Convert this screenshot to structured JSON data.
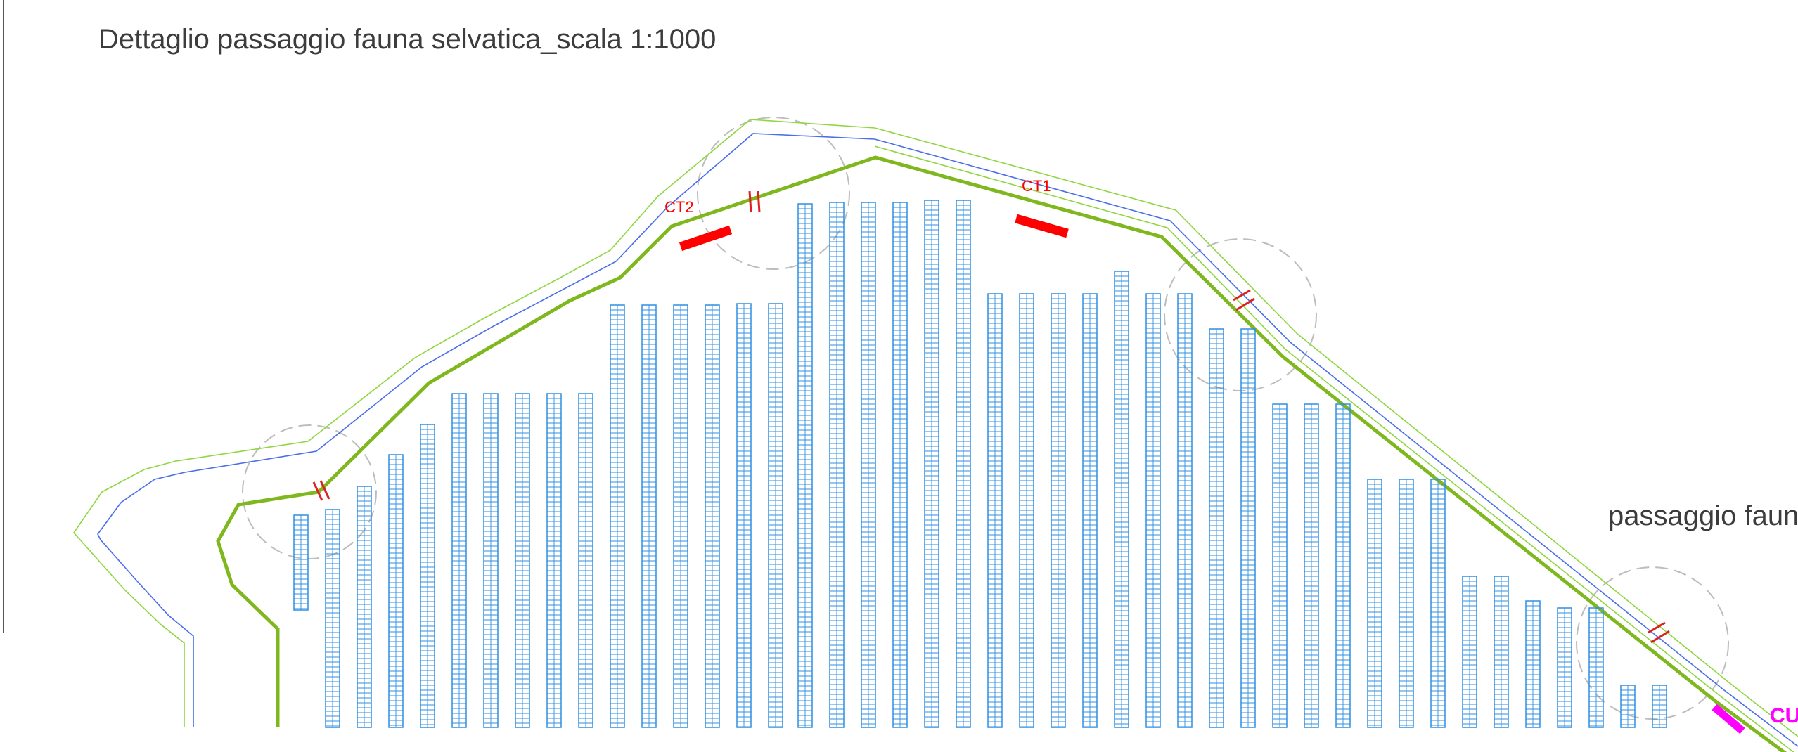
{
  "title": "Dettaglio passaggio fauna selvatica_scala 1:1000",
  "side_label": "passaggio faun",
  "labels": {
    "ct1": "CT1",
    "ct2": "CT2",
    "cu": "CU"
  },
  "colors": {
    "boundary_thick": "#7fb81e",
    "boundary_thin_green": "#8fd640",
    "boundary_blue": "#4a6ee8",
    "panel_rows": "#2f8fe0",
    "cabin": "#ff0000",
    "cabin_text": "#ff0000",
    "passage_mark": "#e02020",
    "circle_dash": "#bdbdbd",
    "cu_magenta": "#ff00ff",
    "title_text": "#3c3c3c"
  }
}
